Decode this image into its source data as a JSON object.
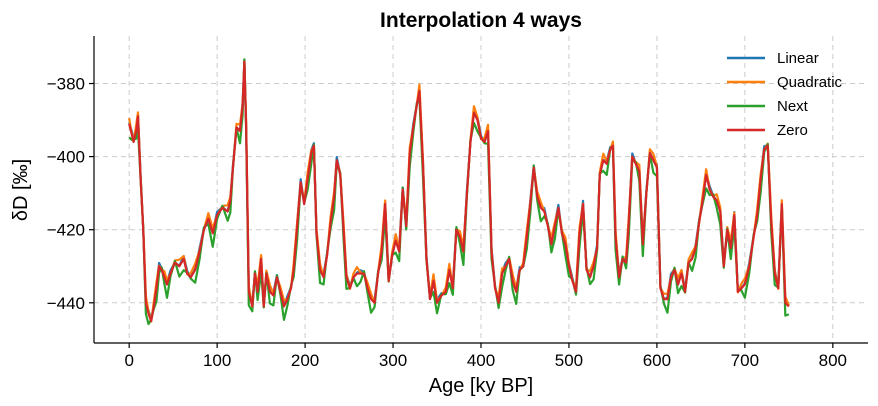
{
  "chart_data": {
    "type": "line",
    "title": "Interpolation 4 ways",
    "xlabel": "Age [ky BP]",
    "ylabel": "δD [‰]",
    "xlim": [
      -40,
      840
    ],
    "ylim": [
      -451,
      -367
    ],
    "xticks": [
      0,
      100,
      200,
      300,
      400,
      500,
      600,
      700,
      800
    ],
    "yticks": [
      -380,
      -400,
      -420,
      -440
    ],
    "grid": true,
    "legend_position": "top-right",
    "series": [
      {
        "name": "Linear",
        "color": "#1f77b4",
        "offset": 0.4,
        "jitter": 0.5
      },
      {
        "name": "Quadratic",
        "color": "#ff7f0e",
        "offset": 0.8,
        "jitter": 1.0
      },
      {
        "name": "Next",
        "color": "#2ca02c",
        "offset": -1.5,
        "jitter": 2.2
      },
      {
        "name": "Zero",
        "color": "#d62728",
        "offset": 0.0,
        "jitter": 0.0
      }
    ],
    "values": [
      [
        0,
        -391
      ],
      [
        3,
        -394
      ],
      [
        5,
        -396
      ],
      [
        8,
        -393
      ],
      [
        10,
        -389
      ],
      [
        13,
        -406
      ],
      [
        16,
        -420
      ],
      [
        19,
        -440
      ],
      [
        22,
        -443
      ],
      [
        25,
        -445
      ],
      [
        28,
        -441
      ],
      [
        31,
        -436
      ],
      [
        34,
        -430
      ],
      [
        37,
        -431
      ],
      [
        40,
        -433
      ],
      [
        43,
        -435
      ],
      [
        47,
        -432
      ],
      [
        52,
        -429
      ],
      [
        57,
        -430
      ],
      [
        62,
        -428
      ],
      [
        66,
        -432
      ],
      [
        70,
        -433
      ],
      [
        75,
        -431
      ],
      [
        80,
        -426
      ],
      [
        85,
        -420
      ],
      [
        90,
        -417
      ],
      [
        95,
        -421
      ],
      [
        100,
        -416
      ],
      [
        106,
        -414
      ],
      [
        112,
        -415
      ],
      [
        115,
        -412
      ],
      [
        118,
        -403
      ],
      [
        122,
        -392
      ],
      [
        126,
        -393
      ],
      [
        129,
        -386
      ],
      [
        131,
        -374
      ],
      [
        133,
        -392
      ],
      [
        136,
        -437
      ],
      [
        140,
        -441
      ],
      [
        143,
        -432
      ],
      [
        146,
        -437
      ],
      [
        150,
        -428
      ],
      [
        153,
        -441
      ],
      [
        156,
        -432
      ],
      [
        160,
        -437
      ],
      [
        164,
        -438
      ],
      [
        168,
        -433
      ],
      [
        172,
        -437
      ],
      [
        176,
        -441
      ],
      [
        180,
        -439
      ],
      [
        184,
        -436
      ],
      [
        187,
        -431
      ],
      [
        191,
        -419
      ],
      [
        195,
        -407
      ],
      [
        199,
        -413
      ],
      [
        203,
        -406
      ],
      [
        207,
        -399
      ],
      [
        210,
        -397
      ],
      [
        213,
        -421
      ],
      [
        217,
        -431
      ],
      [
        221,
        -433
      ],
      [
        225,
        -427
      ],
      [
        229,
        -418
      ],
      [
        233,
        -411
      ],
      [
        236,
        -401
      ],
      [
        240,
        -405
      ],
      [
        244,
        -421
      ],
      [
        247,
        -433
      ],
      [
        251,
        -436
      ],
      [
        255,
        -433
      ],
      [
        259,
        -432
      ],
      [
        263,
        -432
      ],
      [
        267,
        -432
      ],
      [
        271,
        -436
      ],
      [
        275,
        -439
      ],
      [
        279,
        -440
      ],
      [
        283,
        -432
      ],
      [
        287,
        -426
      ],
      [
        291,
        -413
      ],
      [
        295,
        -434
      ],
      [
        299,
        -427
      ],
      [
        303,
        -423
      ],
      [
        307,
        -426
      ],
      [
        311,
        -409
      ],
      [
        315,
        -419
      ],
      [
        319,
        -399
      ],
      [
        323,
        -392
      ],
      [
        327,
        -386
      ],
      [
        330,
        -382
      ],
      [
        334,
        -402
      ],
      [
        338,
        -428
      ],
      [
        342,
        -439
      ],
      [
        346,
        -434
      ],
      [
        350,
        -440
      ],
      [
        355,
        -438
      ],
      [
        360,
        -437
      ],
      [
        364,
        -431
      ],
      [
        368,
        -436
      ],
      [
        372,
        -420
      ],
      [
        376,
        -422
      ],
      [
        380,
        -426
      ],
      [
        384,
        -410
      ],
      [
        388,
        -396
      ],
      [
        392,
        -388
      ],
      [
        396,
        -390
      ],
      [
        400,
        -395
      ],
      [
        404,
        -396
      ],
      [
        408,
        -393
      ],
      [
        412,
        -426
      ],
      [
        416,
        -436
      ],
      [
        420,
        -440
      ],
      [
        424,
        -432
      ],
      [
        428,
        -430
      ],
      [
        432,
        -428
      ],
      [
        436,
        -434
      ],
      [
        440,
        -437
      ],
      [
        444,
        -431
      ],
      [
        448,
        -430
      ],
      [
        452,
        -422
      ],
      [
        456,
        -413
      ],
      [
        460,
        -403
      ],
      [
        464,
        -411
      ],
      [
        468,
        -414
      ],
      [
        472,
        -415
      ],
      [
        476,
        -419
      ],
      [
        480,
        -424
      ],
      [
        484,
        -419
      ],
      [
        488,
        -414
      ],
      [
        492,
        -421
      ],
      [
        496,
        -424
      ],
      [
        500,
        -430
      ],
      [
        504,
        -434
      ],
      [
        508,
        -437
      ],
      [
        512,
        -421
      ],
      [
        516,
        -413
      ],
      [
        520,
        -431
      ],
      [
        524,
        -433
      ],
      [
        528,
        -430
      ],
      [
        532,
        -425
      ],
      [
        535,
        -405
      ],
      [
        539,
        -401
      ],
      [
        543,
        -402
      ],
      [
        547,
        -398
      ],
      [
        550,
        -397
      ],
      [
        553,
        -422
      ],
      [
        557,
        -433
      ],
      [
        561,
        -428
      ],
      [
        565,
        -429
      ],
      [
        568,
        -418
      ],
      [
        572,
        -400
      ],
      [
        576,
        -402
      ],
      [
        580,
        -404
      ],
      [
        584,
        -424
      ],
      [
        588,
        -410
      ],
      [
        592,
        -399
      ],
      [
        596,
        -401
      ],
      [
        600,
        -403
      ],
      [
        604,
        -436
      ],
      [
        608,
        -439
      ],
      [
        612,
        -439
      ],
      [
        616,
        -433
      ],
      [
        620,
        -431
      ],
      [
        624,
        -435
      ],
      [
        628,
        -432
      ],
      [
        632,
        -437
      ],
      [
        636,
        -429
      ],
      [
        640,
        -428
      ],
      [
        644,
        -425
      ],
      [
        648,
        -418
      ],
      [
        652,
        -412
      ],
      [
        656,
        -405
      ],
      [
        660,
        -409
      ],
      [
        664,
        -411
      ],
      [
        668,
        -412
      ],
      [
        672,
        -415
      ],
      [
        676,
        -430
      ],
      [
        680,
        -420
      ],
      [
        684,
        -425
      ],
      [
        688,
        -416
      ],
      [
        692,
        -437
      ],
      [
        696,
        -436
      ],
      [
        700,
        -435
      ],
      [
        705,
        -430
      ],
      [
        710,
        -422
      ],
      [
        714,
        -416
      ],
      [
        718,
        -406
      ],
      [
        722,
        -398
      ],
      [
        726,
        -397
      ],
      [
        730,
        -418
      ],
      [
        734,
        -432
      ],
      [
        738,
        -436
      ],
      [
        742,
        -413
      ],
      [
        746,
        -440
      ],
      [
        750,
        -441
      ]
    ]
  }
}
